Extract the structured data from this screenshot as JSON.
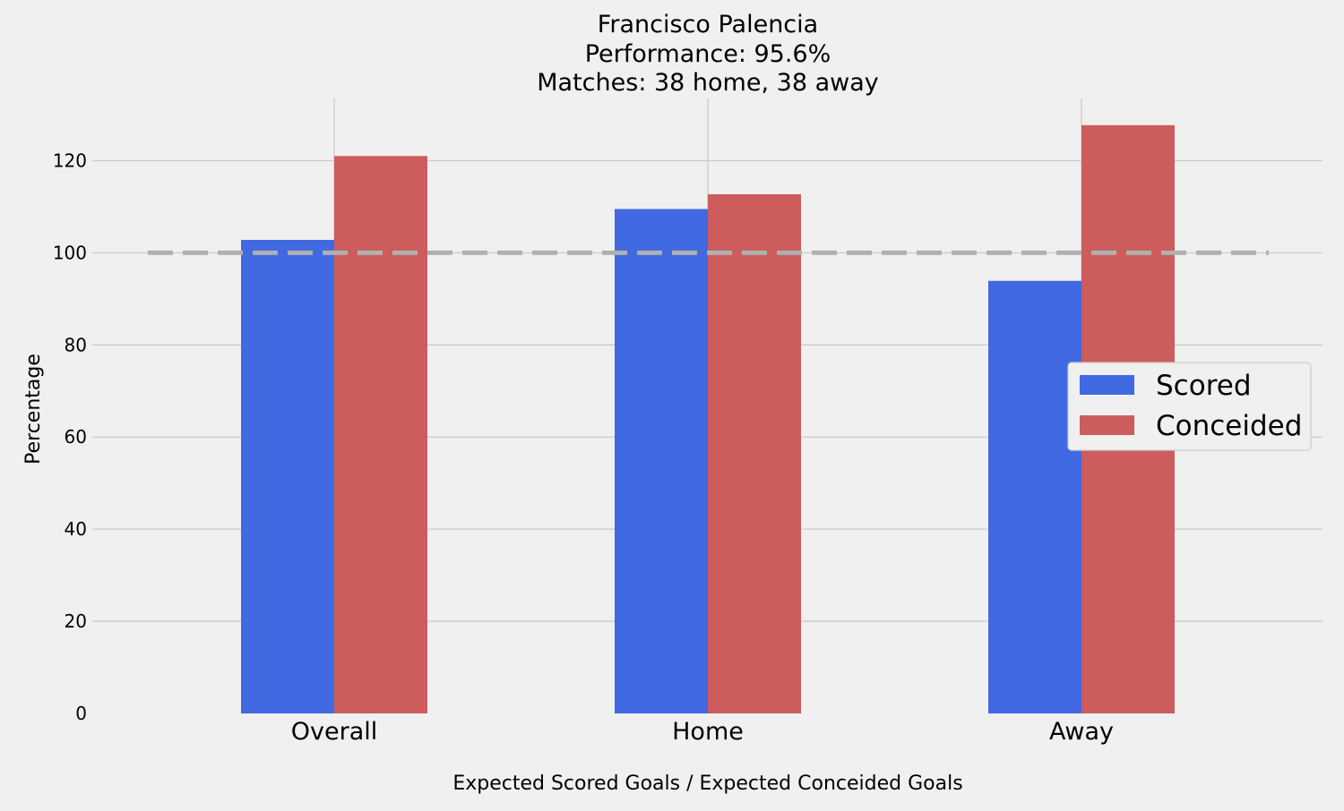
{
  "chart_data": {
    "type": "bar",
    "title": [
      "Francisco Palencia",
      "Performance: 95.6%",
      "Matches: 38 home, 38 away"
    ],
    "xlabel": "Expected Scored Goals / Expected Conceided Goals",
    "ylabel": "Percentage",
    "categories": [
      "Overall",
      "Home",
      "Away"
    ],
    "series": [
      {
        "name": "Scored",
        "values": [
          102.8,
          109.5,
          93.9
        ],
        "color": "#4169e1"
      },
      {
        "name": "Conceided",
        "values": [
          121.0,
          112.7,
          127.7
        ],
        "color": "#cd5c5c"
      }
    ],
    "ylim": [
      0,
      133.5
    ],
    "yticks": [
      0,
      20,
      40,
      60,
      80,
      100,
      120
    ],
    "reference_line": {
      "value": 100,
      "style": "dashed",
      "color": "#b0b0b0"
    },
    "grid": true,
    "legend_position": "center-right",
    "background_color": "#f0f0f0",
    "grid_color": "#cbcbcb"
  }
}
